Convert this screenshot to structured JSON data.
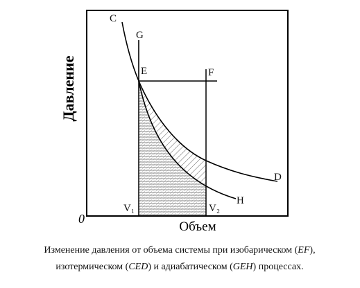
{
  "diagram": {
    "y_axis_label": "Давление",
    "x_axis_label": "Объем",
    "origin_label": "0",
    "point_labels": {
      "C": "C",
      "G": "G",
      "E": "E",
      "F": "F",
      "D": "D",
      "H": "H",
      "V1": "V₁",
      "V2": "V₂"
    }
  },
  "caption": {
    "line1": [
      "Изменение давления от объема системы при изобарическом (",
      "EF",
      "),"
    ],
    "line2": [
      "изотермическом (",
      "CED",
      ") и адиабатическом (",
      "GEH",
      ") процессах."
    ]
  }
}
